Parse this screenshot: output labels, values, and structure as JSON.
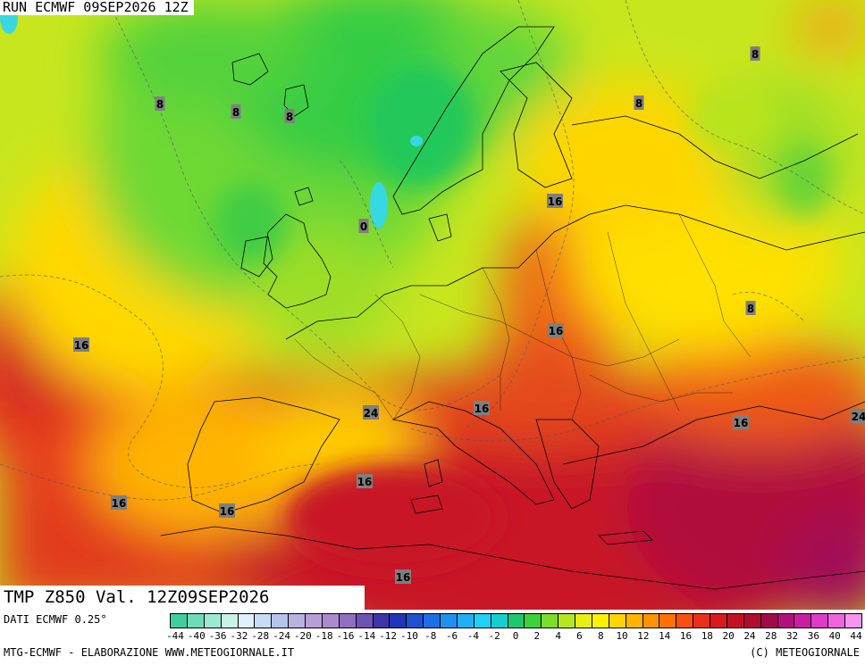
{
  "header": {
    "run_title": "RUN ECMWF 09SEP2026 12Z"
  },
  "product": {
    "title": "TMP Z850 Val. 12Z09SEP2026"
  },
  "footer": {
    "dati": "DATI ECMWF 0.25°",
    "credit_left": "MTG-ECMWF - ELABORAZIONE WWW.METEOGIORNALE.IT",
    "credit_right": "(C) METEOGIORNALE"
  },
  "legend": {
    "labels": [
      "-44",
      "-40",
      "-36",
      "-32",
      "-28",
      "-24",
      "-20",
      "-18",
      "-16",
      "-14",
      "-12",
      "-10",
      "-8",
      "-6",
      "-4",
      "-2",
      "0",
      "2",
      "4",
      "6",
      "8",
      "10",
      "12",
      "14",
      "16",
      "18",
      "20",
      "24",
      "28",
      "32",
      "36",
      "40",
      "44"
    ],
    "colors": [
      "#3fcf9e",
      "#6edcb8",
      "#9de8d2",
      "#c9f2e6",
      "#dff0ff",
      "#c8dcf5",
      "#b5c4ea",
      "#b7b2e0",
      "#b59fd6",
      "#a98bcc",
      "#8f6fc0",
      "#6f53b0",
      "#3e35a8",
      "#2235b8",
      "#2050d0",
      "#1f6ee6",
      "#1f90f0",
      "#1fb0f5",
      "#1fd0f7",
      "#14cfcf",
      "#1ec86e",
      "#3ed23a",
      "#7cdd2a",
      "#b6e61e",
      "#e8ef14",
      "#fff200",
      "#ffd400",
      "#ffb400",
      "#ff9400",
      "#ff7200",
      "#f85010",
      "#e83018",
      "#d81a1e",
      "#c41024",
      "#ae0c30",
      "#a00a48",
      "#b0107a",
      "#c81ea6",
      "#dc3cc8",
      "#ee64e0",
      "#f894ee"
    ]
  },
  "isotherm_labels": [
    "8",
    "8",
    "8",
    "8",
    "8",
    "0",
    "16",
    "16",
    "8",
    "16",
    "16",
    "16",
    "16",
    "16",
    "16",
    "16",
    "24",
    "24",
    "8"
  ],
  "colors": {
    "hot": "#d41e28",
    "warm": "#f07a10",
    "mild": "#ffe600",
    "cool": "#7fe02a",
    "cold": "#2ec84a",
    "frost": "#38d8e0"
  }
}
